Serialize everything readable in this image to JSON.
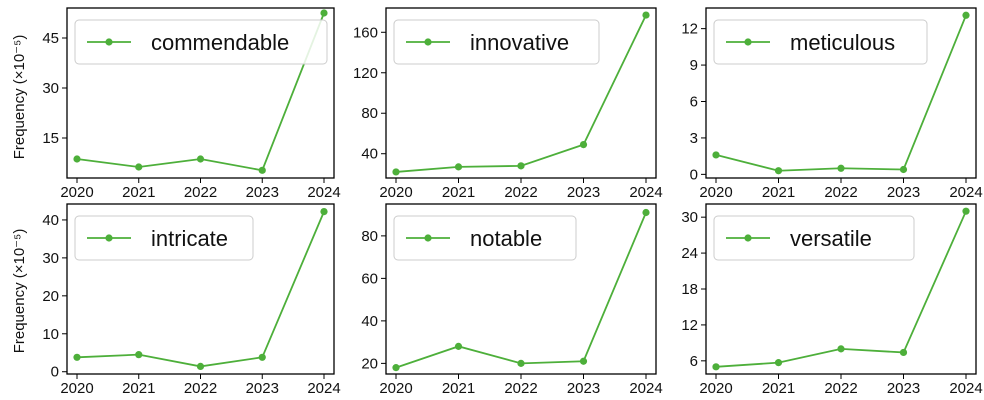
{
  "ylabel": "Frequency (×10⁻⁵)",
  "colors": {
    "line": "#4daf3a",
    "legend_border": "#cccccc",
    "axis": "#000000"
  },
  "chart_data": [
    {
      "type": "line",
      "legend": "commendable",
      "x": [
        2020,
        2021,
        2022,
        2023,
        2024
      ],
      "values": [
        8.7,
        6.3,
        8.7,
        5.3,
        52.5
      ],
      "ylim": [
        3,
        54
      ],
      "yticks": [
        15,
        30,
        45
      ]
    },
    {
      "type": "line",
      "legend": "innovative",
      "x": [
        2020,
        2021,
        2022,
        2023,
        2024
      ],
      "values": [
        22,
        27,
        28,
        49,
        177
      ],
      "ylim": [
        16,
        184
      ],
      "yticks": [
        40,
        80,
        120,
        160
      ]
    },
    {
      "type": "line",
      "legend": "meticulous",
      "x": [
        2020,
        2021,
        2022,
        2023,
        2024
      ],
      "values": [
        1.6,
        0.3,
        0.5,
        0.4,
        13.1
      ],
      "ylim": [
        -0.3,
        13.7
      ],
      "yticks": [
        0,
        3,
        6,
        9,
        12
      ]
    },
    {
      "type": "line",
      "legend": "intricate",
      "x": [
        2020,
        2021,
        2022,
        2023,
        2024
      ],
      "values": [
        3.8,
        4.5,
        1.4,
        3.8,
        42.2
      ],
      "ylim": [
        -0.6,
        44.2
      ],
      "yticks": [
        0,
        10,
        20,
        30,
        40
      ]
    },
    {
      "type": "line",
      "legend": "notable",
      "x": [
        2020,
        2021,
        2022,
        2023,
        2024
      ],
      "values": [
        18,
        28,
        20,
        21,
        91
      ],
      "ylim": [
        15,
        95
      ],
      "yticks": [
        20,
        40,
        60,
        80
      ]
    },
    {
      "type": "line",
      "legend": "versatile",
      "x": [
        2020,
        2021,
        2022,
        2023,
        2024
      ],
      "values": [
        5.0,
        5.7,
        8.0,
        7.4,
        31.0
      ],
      "ylim": [
        3.8,
        32.2
      ],
      "yticks": [
        6,
        12,
        18,
        24,
        30
      ]
    }
  ]
}
